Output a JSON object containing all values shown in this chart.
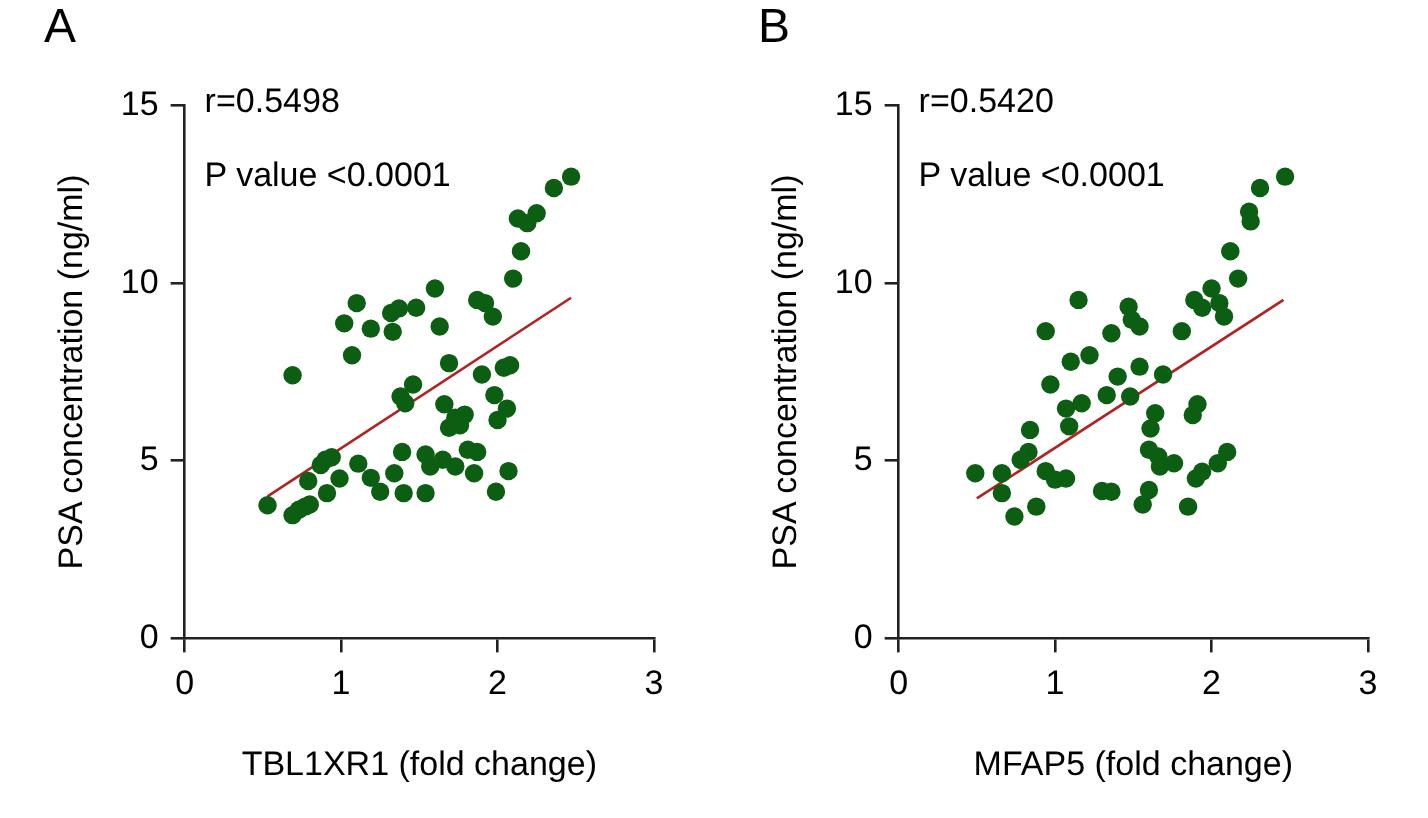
{
  "chart_data": [
    {
      "type": "scatter",
      "title": "A",
      "xlabel": "TBL1XR1 (fold change)",
      "ylabel": "PSA concentration (ng/ml)",
      "annotations": [
        "r=0.5498",
        "P value <0.0001"
      ],
      "xlim": [
        0,
        3
      ],
      "xticks": [
        0,
        1,
        2,
        3
      ],
      "ylim": [
        0,
        15
      ],
      "yticks": [
        0,
        5,
        10,
        15
      ],
      "grid": false,
      "legend": false,
      "series": [
        {
          "type": "scatter",
          "marker": "circle",
          "color": "#0b5e12",
          "x": [
            0.53,
            0.69,
            0.73,
            0.77,
            0.8,
            0.69,
            0.79,
            0.87,
            0.9,
            0.94,
            0.91,
            0.99,
            1.02,
            1.1,
            1.07,
            1.11,
            1.19,
            1.19,
            1.25,
            1.32,
            1.37,
            1.33,
            1.34,
            1.39,
            1.38,
            1.41,
            1.46,
            1.4,
            1.48,
            1.54,
            1.54,
            1.57,
            1.6,
            1.63,
            1.65,
            1.69,
            1.66,
            1.69,
            1.73,
            1.76,
            1.79,
            1.73,
            1.81,
            1.87,
            1.85,
            1.87,
            1.92,
            1.97,
            1.9,
            1.98,
            1.99,
            2.0,
            2.06,
            2.04,
            2.08,
            2.07,
            2.1,
            2.15,
            2.13,
            2.19,
            2.25,
            2.36,
            2.47
          ],
          "values": [
            3.75,
            3.47,
            3.62,
            3.71,
            3.77,
            7.41,
            4.43,
            4.88,
            5.03,
            5.1,
            4.09,
            4.5,
            8.87,
            9.44,
            7.97,
            4.92,
            8.72,
            4.52,
            4.13,
            9.16,
            9.29,
            8.63,
            4.65,
            5.25,
            6.81,
            6.62,
            7.15,
            4.09,
            9.31,
            4.09,
            5.18,
            4.84,
            9.85,
            8.78,
            5.03,
            7.75,
            6.59,
            5.93,
            6.21,
            6.0,
            6.3,
            4.84,
            5.31,
            5.25,
            4.65,
            9.53,
            9.44,
            9.06,
            7.43,
            6.85,
            4.13,
            6.15,
            6.47,
            7.62,
            7.69,
            4.71,
            10.13,
            10.9,
            11.82,
            11.69,
            11.97,
            12.68,
            13.0
          ]
        },
        {
          "type": "line",
          "marker": "none",
          "color": "#b22222",
          "x": [
            0.53,
            2.47
          ],
          "values": [
            4.0,
            9.59
          ]
        }
      ]
    },
    {
      "type": "scatter",
      "title": "B",
      "xlabel": "MFAP5 (fold change)",
      "ylabel": "PSA concentration (ng/ml)",
      "annotations": [
        "r=0.5420",
        "P value <0.0001"
      ],
      "xlim": [
        0,
        3
      ],
      "xticks": [
        0,
        1,
        2,
        3
      ],
      "ylim": [
        0,
        15
      ],
      "yticks": [
        0,
        5,
        10,
        15
      ],
      "grid": false,
      "legend": false,
      "series": [
        {
          "type": "scatter",
          "marker": "circle",
          "color": "#0b5e12",
          "x": [
            0.49,
            0.66,
            0.66,
            0.74,
            0.88,
            0.78,
            0.83,
            0.84,
            0.94,
            0.94,
            1.0,
            1.07,
            0.97,
            1.07,
            1.09,
            1.1,
            1.17,
            1.15,
            1.22,
            1.3,
            1.36,
            1.33,
            1.36,
            1.4,
            1.48,
            1.47,
            1.49,
            1.54,
            1.54,
            1.56,
            1.6,
            1.61,
            1.64,
            1.6,
            1.66,
            1.67,
            1.76,
            1.69,
            1.81,
            1.85,
            1.88,
            1.91,
            1.9,
            1.94,
            2.04,
            2.1,
            1.89,
            1.94,
            2.0,
            2.05,
            2.08,
            2.17,
            2.12,
            2.24,
            2.25,
            2.31,
            2.47
          ],
          "values": [
            4.65,
            4.65,
            4.09,
            3.43,
            3.71,
            5.03,
            5.25,
            5.87,
            8.65,
            4.71,
            4.47,
            4.5,
            7.15,
            6.47,
            5.97,
            7.79,
            6.62,
            9.53,
            7.97,
            4.15,
            4.13,
            6.85,
            8.59,
            7.37,
            6.81,
            9.34,
            8.97,
            8.78,
            7.65,
            3.77,
            4.18,
            5.91,
            6.34,
            5.31,
            5.12,
            4.84,
            4.93,
            7.43,
            8.65,
            3.71,
            6.29,
            6.59,
            4.5,
            4.69,
            4.93,
            5.25,
            9.53,
            9.31,
            9.85,
            9.44,
            9.06,
            10.13,
            10.9,
            12.01,
            11.74,
            12.68,
            13.0
          ]
        },
        {
          "type": "line",
          "marker": "none",
          "color": "#b22222",
          "x": [
            0.5,
            2.46
          ],
          "values": [
            3.94,
            9.53
          ]
        }
      ]
    }
  ]
}
